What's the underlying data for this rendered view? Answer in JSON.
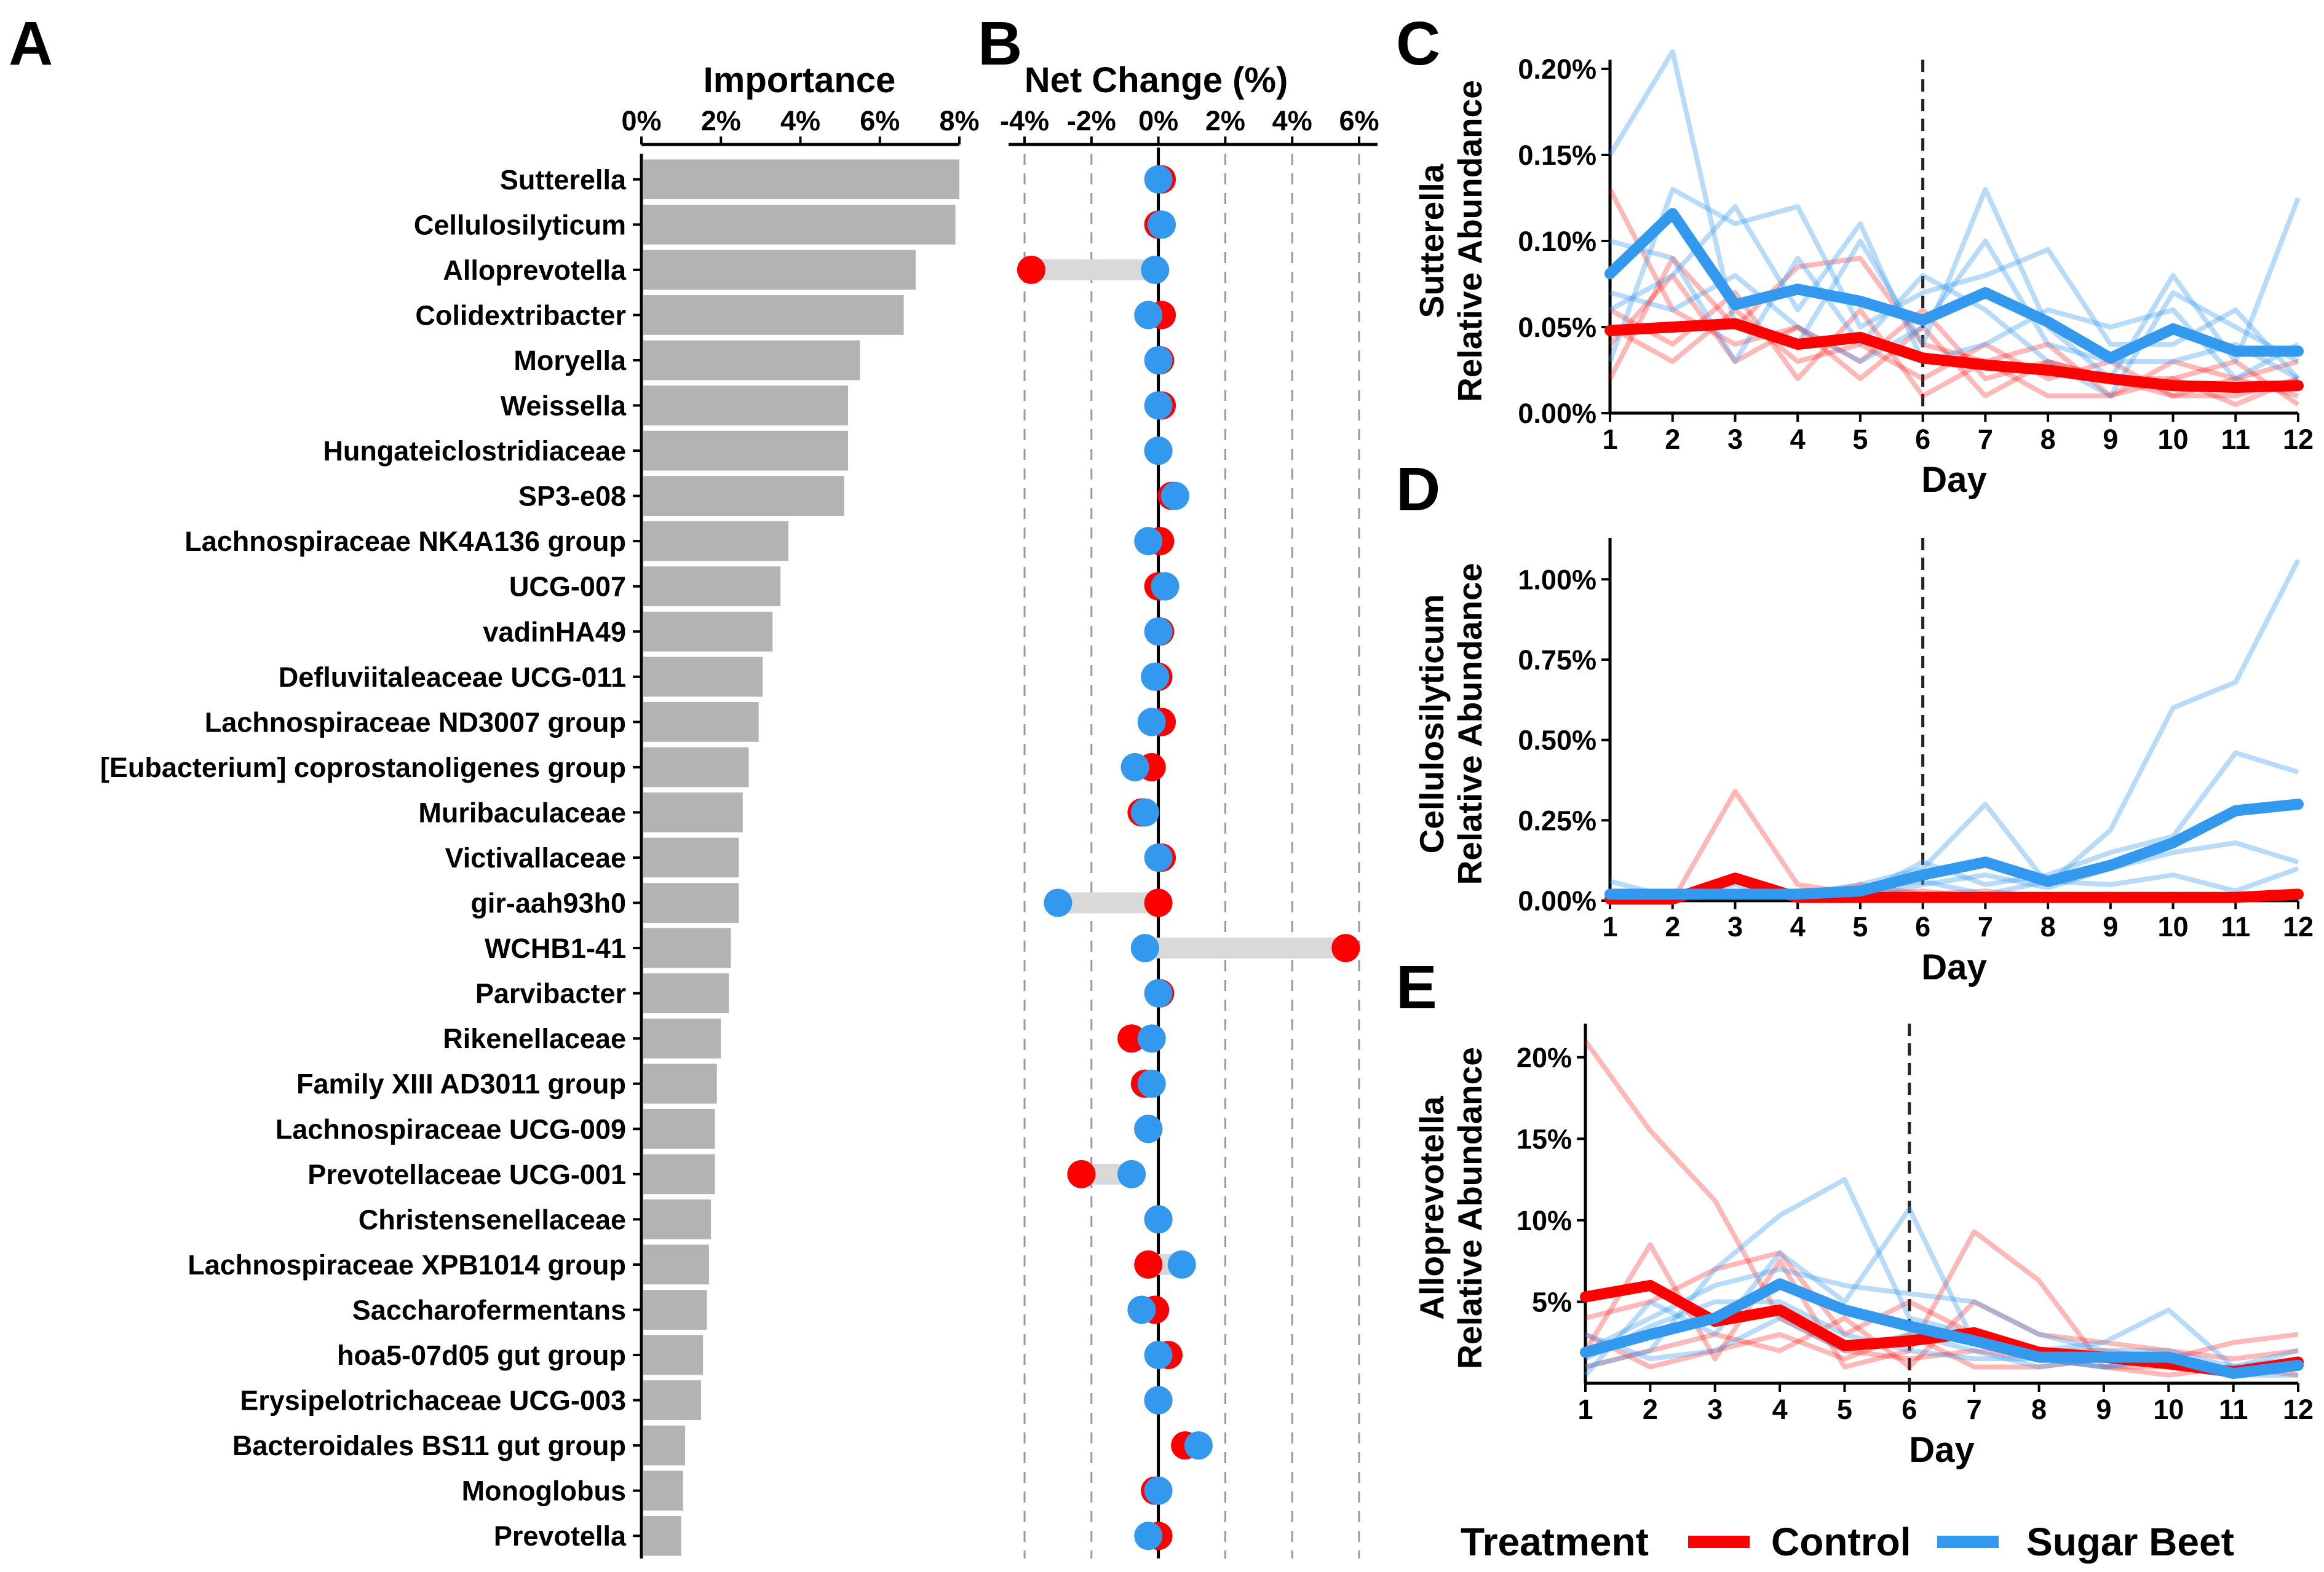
{
  "chart_data": [
    {
      "panel": "A",
      "type": "bar",
      "orientation": "horizontal",
      "title": "Importance",
      "xlim": [
        0,
        8
      ],
      "xticks": [
        "0%",
        "2%",
        "4%",
        "6%",
        "8%"
      ],
      "categories": [
        "Sutterella",
        "Cellulosilyticum",
        "Alloprevotella",
        "Colidextribacter",
        "Moryella",
        "Weissella",
        "Hungateiclostridiaceae",
        "SP3-e08",
        "Lachnospiraceae NK4A136 group",
        "UCG-007",
        "vadinHA49",
        "Defluviitaleaceae UCG-011",
        "Lachnospiraceae ND3007 group",
        "[Eubacterium] coprostanoligenes group",
        "Muribaculaceae",
        "Victivallaceae",
        "gir-aah93h0",
        "WCHB1-41",
        "Parvibacter",
        "Rikenellaceae",
        "Family XIII AD3011 group",
        "Lachnospiraceae UCG-009",
        "Prevotellaceae UCG-001",
        "Christensenellaceae",
        "Lachnospiraceae XPB1014 group",
        "Saccharofermentans",
        "hoa5-07d05 gut group",
        "Erysipelotrichaceae UCG-003",
        "Bacteroidales BS11 gut group",
        "Monoglobus",
        "Prevotella"
      ],
      "values": [
        8.0,
        7.9,
        6.9,
        6.6,
        5.5,
        5.2,
        5.2,
        5.1,
        3.7,
        3.5,
        3.3,
        3.05,
        2.95,
        2.7,
        2.55,
        2.45,
        2.45,
        2.25,
        2.2,
        2.0,
        1.9,
        1.85,
        1.85,
        1.75,
        1.7,
        1.65,
        1.55,
        1.5,
        1.1,
        1.05,
        1.0
      ]
    },
    {
      "panel": "B",
      "type": "scatter",
      "title": "Net Change (%)",
      "xlim": [
        -4,
        6
      ],
      "xticks": [
        "-4%",
        "-2%",
        "0%",
        "2%",
        "4%",
        "6%"
      ],
      "series": [
        {
          "name": "Control",
          "values": [
            0.1,
            0.0,
            -3.8,
            0.1,
            0.05,
            0.1,
            0.0,
            0.4,
            0.05,
            0.0,
            0.05,
            0.0,
            0.1,
            -0.2,
            -0.5,
            0.1,
            0.0,
            5.6,
            0.05,
            -0.8,
            -0.4,
            -0.3,
            -2.3,
            0.0,
            -0.3,
            -0.1,
            0.3,
            0.0,
            0.8,
            -0.1,
            0.0
          ]
        },
        {
          "name": "Sugar Beet",
          "values": [
            0.0,
            0.1,
            -0.1,
            -0.3,
            0.0,
            0.0,
            0.0,
            0.5,
            -0.3,
            0.2,
            0.0,
            -0.1,
            -0.2,
            -0.7,
            -0.4,
            0.0,
            -3.0,
            -0.4,
            0.0,
            -0.2,
            -0.2,
            -0.3,
            -0.8,
            0.0,
            0.7,
            -0.5,
            0.0,
            0.0,
            1.2,
            0.0,
            -0.3
          ]
        }
      ]
    },
    {
      "panel": "C",
      "type": "line",
      "ylabel": "Sutterella\nRelative Abundance",
      "xlabel": "Day",
      "x": [
        1,
        2,
        3,
        4,
        5,
        6,
        7,
        8,
        9,
        10,
        11,
        12
      ],
      "ylim": [
        0,
        0.2
      ],
      "yticks": [
        "0.00%",
        "0.05%",
        "0.10%",
        "0.15%",
        "0.20%"
      ],
      "vline": 6,
      "series": [
        {
          "name": "Control",
          "values": [
            0.048,
            0.05,
            0.052,
            0.04,
            0.044,
            0.032,
            0.028,
            0.025,
            0.02,
            0.016,
            0.015,
            0.016
          ]
        },
        {
          "name": "Sugar Beet",
          "values": [
            0.081,
            0.116,
            0.063,
            0.072,
            0.065,
            0.054,
            0.07,
            0.053,
            0.032,
            0.049,
            0.036,
            0.036
          ]
        }
      ],
      "replicates": {
        "Control": [
          [
            0.13,
            0.06,
            0.04,
            0.05,
            0.03,
            0.06,
            0.02,
            0.03,
            0.02,
            0.01,
            0.01,
            0.02
          ],
          [
            0.02,
            0.09,
            0.05,
            0.085,
            0.09,
            0.04,
            0.03,
            0.04,
            0.01,
            0.03,
            0.02,
            0.01
          ],
          [
            0.05,
            0.03,
            0.06,
            0.03,
            0.04,
            0.02,
            0.04,
            0.02,
            0.03,
            0.01,
            0.02,
            0.03
          ],
          [
            0.04,
            0.08,
            0.03,
            0.05,
            0.02,
            0.05,
            0.01,
            0.03,
            0.02,
            0.02,
            0.005,
            0.02
          ],
          [
            0.06,
            0.04,
            0.07,
            0.02,
            0.06,
            0.01,
            0.03,
            0.01,
            0.01,
            0.02,
            0.03,
            0.005
          ]
        ],
        "Sugar Beet": [
          [
            0.15,
            0.21,
            0.05,
            0.04,
            0.1,
            0.04,
            0.13,
            0.05,
            0.02,
            0.08,
            0.03,
            0.125
          ],
          [
            0.03,
            0.13,
            0.11,
            0.12,
            0.05,
            0.07,
            0.08,
            0.095,
            0.04,
            0.04,
            0.06,
            0.02
          ],
          [
            0.06,
            0.08,
            0.12,
            0.06,
            0.11,
            0.03,
            0.04,
            0.06,
            0.05,
            0.06,
            0.02,
            0.04
          ],
          [
            0.1,
            0.09,
            0.03,
            0.09,
            0.04,
            0.08,
            0.06,
            0.03,
            0.01,
            0.07,
            0.05,
            0.03
          ],
          [
            0.07,
            0.06,
            0.08,
            0.05,
            0.03,
            0.05,
            0.1,
            0.04,
            0.03,
            0.03,
            0.04,
            0.02
          ]
        ]
      }
    },
    {
      "panel": "D",
      "type": "line",
      "ylabel": "Cellulosilyticum\nRelative Abundance",
      "xlabel": "Day",
      "x": [
        1,
        2,
        3,
        4,
        5,
        6,
        7,
        8,
        9,
        10,
        11,
        12
      ],
      "ylim": [
        0,
        1.1
      ],
      "yticks": [
        "0.00%",
        "0.25%",
        "0.50%",
        "0.75%",
        "1.00%"
      ],
      "vline": 6,
      "series": [
        {
          "name": "Control",
          "values": [
            0.005,
            0.005,
            0.07,
            0.01,
            0.01,
            0.01,
            0.01,
            0.01,
            0.01,
            0.01,
            0.01,
            0.02
          ]
        },
        {
          "name": "Sugar Beet",
          "values": [
            0.02,
            0.02,
            0.02,
            0.02,
            0.03,
            0.08,
            0.12,
            0.06,
            0.11,
            0.18,
            0.28,
            0.3
          ]
        }
      ],
      "replicates": {
        "Control": [
          [
            0.01,
            0.0,
            0.34,
            0.05,
            0.02,
            0.03,
            0.01,
            0.02,
            0.01,
            0.01,
            0.01,
            0.02
          ],
          [
            0.0,
            0.01,
            0.06,
            0.01,
            0.05,
            0.02,
            0.03,
            0.01,
            0.02,
            0.01,
            0.02,
            0.01
          ],
          [
            0.02,
            0.0,
            0.02,
            0.02,
            0.01,
            0.01,
            0.02,
            0.02,
            0.01,
            0.02,
            0.01,
            0.03
          ]
        ],
        "Sugar Beet": [
          [
            0.06,
            0.01,
            0.02,
            0.02,
            0.05,
            0.1,
            0.3,
            0.05,
            0.22,
            0.6,
            0.68,
            1.06
          ],
          [
            0.01,
            0.02,
            0.05,
            0.01,
            0.02,
            0.12,
            0.05,
            0.08,
            0.15,
            0.2,
            0.46,
            0.4
          ],
          [
            0.02,
            0.03,
            0.01,
            0.03,
            0.01,
            0.05,
            0.08,
            0.04,
            0.1,
            0.15,
            0.18,
            0.12
          ],
          [
            0.0,
            0.01,
            0.03,
            0.02,
            0.04,
            0.06,
            0.02,
            0.06,
            0.05,
            0.08,
            0.03,
            0.1
          ]
        ]
      }
    },
    {
      "panel": "E",
      "type": "line",
      "ylabel": "Alloprevotella\nRelative Abundance",
      "xlabel": "Day",
      "x": [
        1,
        2,
        3,
        4,
        5,
        6,
        7,
        8,
        9,
        10,
        11,
        12
      ],
      "ylim": [
        0,
        21.5
      ],
      "yticks": [
        "5%",
        "10%",
        "15%",
        "20%"
      ],
      "vline": 6,
      "series": [
        {
          "name": "Control",
          "values": [
            5.3,
            6.0,
            3.8,
            4.5,
            2.3,
            2.6,
            3.1,
            1.9,
            1.6,
            1.2,
            0.7,
            1.3
          ]
        },
        {
          "name": "Sugar Beet",
          "values": [
            1.9,
            3.0,
            4.0,
            6.1,
            4.5,
            3.5,
            2.6,
            1.6,
            1.6,
            1.6,
            0.6,
            1.1
          ]
        }
      ],
      "replicates": {
        "Control": [
          [
            21.0,
            15.5,
            11.2,
            4.0,
            2.0,
            1.5,
            2.0,
            1.5,
            1.0,
            1.0,
            0.5,
            1.0
          ],
          [
            2.0,
            8.5,
            1.5,
            7.5,
            1.0,
            2.0,
            9.3,
            6.3,
            1.0,
            0.5,
            1.0,
            0.5
          ],
          [
            4.0,
            5.0,
            7.0,
            8.0,
            3.0,
            5.0,
            3.0,
            2.0,
            2.0,
            1.5,
            2.5,
            3.0
          ],
          [
            1.0,
            2.0,
            3.0,
            2.0,
            4.0,
            1.0,
            5.0,
            3.0,
            2.5,
            2.0,
            1.5,
            2.0
          ],
          [
            3.0,
            1.0,
            2.0,
            3.0,
            1.5,
            3.0,
            1.0,
            1.0,
            1.5,
            1.0,
            0.5,
            1.5
          ]
        ],
        "Sugar Beet": [
          [
            1.0,
            2.0,
            7.0,
            10.3,
            12.5,
            4.0,
            3.0,
            2.0,
            2.5,
            4.5,
            1.0,
            2.0
          ],
          [
            0.5,
            5.0,
            3.0,
            8.0,
            5.0,
            10.7,
            2.5,
            1.5,
            1.0,
            1.5,
            0.5,
            1.0
          ],
          [
            2.0,
            4.0,
            6.0,
            7.0,
            6.0,
            5.5,
            5.0,
            3.0,
            2.0,
            2.0,
            1.0,
            1.5
          ],
          [
            3.0,
            1.5,
            2.0,
            4.0,
            2.0,
            3.0,
            2.0,
            1.0,
            1.5,
            1.0,
            0.5,
            0.5
          ],
          [
            1.5,
            3.5,
            5.0,
            5.0,
            3.0,
            2.0,
            1.5,
            1.5,
            1.0,
            1.5,
            0.5,
            1.0
          ]
        ]
      }
    }
  ],
  "panel_labels": {
    "a": "A",
    "b": "B",
    "c": "C",
    "d": "D",
    "e": "E"
  },
  "legend": {
    "title": "Treatment",
    "items": [
      "Control",
      "Sugar Beet"
    ]
  },
  "colors": {
    "control": "#ff0000",
    "sugar_beet": "#3399ee",
    "bar": "#b3b3b3",
    "segment": "#d9d9d9"
  }
}
